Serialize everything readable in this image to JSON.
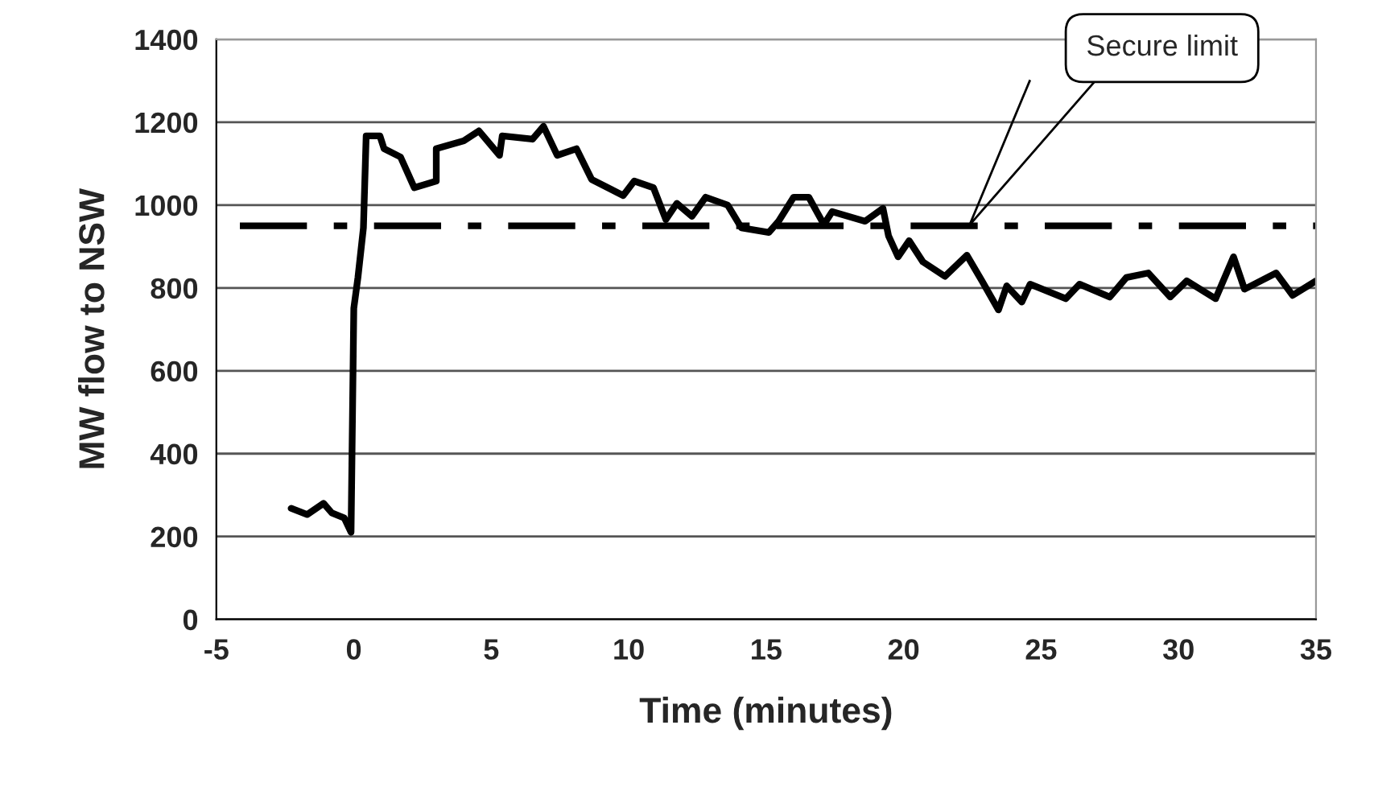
{
  "chart_data": {
    "type": "line",
    "xlabel": "Time (minutes)",
    "ylabel": "MW flow to NSW",
    "x": [
      -2.28,
      -1.7,
      -1.1,
      -0.8,
      -0.35,
      -0.1,
      0,
      0.15,
      0.35,
      0.45,
      0.95,
      1.1,
      1.7,
      2.2,
      3.0,
      3.0,
      4.0,
      4.55,
      5.3,
      5.4,
      6.5,
      6.9,
      7.4,
      8.1,
      8.65,
      9.8,
      10.2,
      10.9,
      11.35,
      11.75,
      12.3,
      12.8,
      13.6,
      14.1,
      15.1,
      15.45,
      16.0,
      16.55,
      17.1,
      17.4,
      18.6,
      19.25,
      19.45,
      19.8,
      20.2,
      20.7,
      21.5,
      22.3,
      22.85,
      23.45,
      23.75,
      24.3,
      24.6,
      25.9,
      26.4,
      27.5,
      28.1,
      28.9,
      29.7,
      30.3,
      31.35,
      32.0,
      32.4,
      33.55,
      34.15,
      35.0
    ],
    "series": [
      {
        "color": "#000000",
        "values": [
          268,
          253,
          280,
          257,
          245,
          210,
          751,
          825,
          945,
          1167,
          1167,
          1136,
          1116,
          1042,
          1058,
          1136,
          1155,
          1179,
          1120,
          1167,
          1159,
          1190,
          1120,
          1136,
          1062,
          1023,
          1058,
          1042,
          965,
          1004,
          973,
          1019,
          1000,
          945,
          934,
          961,
          1019,
          1019,
          953,
          984,
          961,
          992,
          926,
          875,
          914,
          863,
          828,
          879,
          817,
          747,
          805,
          766,
          809,
          774,
          809,
          778,
          825,
          836,
          778,
          817,
          774,
          875,
          797,
          836,
          782,
          817
        ]
      }
    ],
    "xlim": [
      -5,
      35
    ],
    "xticks": [
      -5,
      0,
      5,
      10,
      15,
      20,
      25,
      30,
      35
    ],
    "ylim": [
      0,
      1400
    ],
    "yticks": [
      0,
      200,
      400,
      600,
      800,
      1000,
      1200,
      1400
    ],
    "grid": "y",
    "marker": "none",
    "line_style": "solid",
    "ref_lines": [
      {
        "axis": "y",
        "value": 950,
        "line_style": "dashdot",
        "color": "#000000"
      }
    ],
    "annotations": [
      "Secure limit"
    ]
  }
}
